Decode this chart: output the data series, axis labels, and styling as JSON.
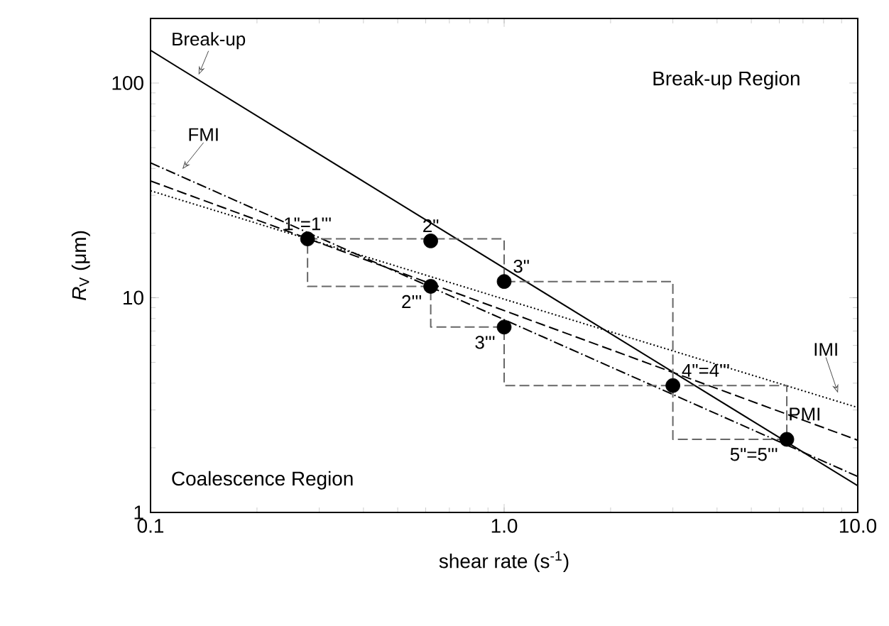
{
  "chart_data": {
    "type": "line",
    "xlabel": "shear rate (s$^{-1}$)",
    "ylabel": "*R*$_{V}$ (μm)",
    "log": "xy",
    "xlim": [
      0.1,
      10
    ],
    "ylim": [
      1,
      200
    ],
    "xticks": [
      0.1,
      {
        "value": 1,
        "label": "1.0"
      },
      {
        "value": 10,
        "label": "10.0"
      }
    ],
    "yticks": [
      1,
      10,
      100
    ],
    "series": [
      {
        "name": "Break-up",
        "color": "#000000",
        "line_style": "solid",
        "x": [
          0.1,
          10
        ],
        "values": [
          142,
          1.33
        ]
      },
      {
        "name": "FMI",
        "color": "#000000",
        "line_style": "dashdot",
        "x": [
          0.1,
          10
        ],
        "values": [
          42.5,
          1.47
        ]
      },
      {
        "name": "PMI",
        "color": "#000000",
        "line_style": "dashed",
        "x": [
          0.1,
          10
        ],
        "values": [
          35,
          2.17
        ]
      },
      {
        "name": "IMI",
        "color": "#000000",
        "line_style": "dotted",
        "x": [
          0.1,
          10
        ],
        "values": [
          31.5,
          3.08
        ]
      },
      {
        "color": "#666666",
        "line_style": "dashed",
        "x": [
          0.278,
          1.0,
          1.0,
          3.0,
          3.0,
          6.3,
          6.3
        ],
        "values": [
          18.8,
          18.8,
          11.9,
          11.9,
          3.9,
          3.9,
          2.19
        ]
      },
      {
        "color": "#666666",
        "line_style": "dashed",
        "x": [
          6.3,
          3.0,
          3.0,
          1.0,
          1.0,
          0.62,
          0.62,
          0.278,
          0.278
        ],
        "values": [
          2.19,
          2.19,
          3.9,
          3.9,
          7.3,
          7.3,
          11.3,
          11.3,
          18.8
        ]
      },
      {
        "type": "scatter",
        "color": "#000000",
        "marker": "circle",
        "x": [
          0.278,
          0.62,
          0.62,
          1.0,
          1.0,
          3.0,
          6.3
        ],
        "values": [
          18.8,
          18.4,
          11.3,
          11.9,
          7.3,
          3.9,
          2.19
        ]
      }
    ],
    "annotations": [
      {
        "text": "1\"=1'''",
        "x": 0.278,
        "y": 18.8
      },
      {
        "text": "2\"",
        "x": 0.62,
        "y": 18.4
      },
      {
        "text": "2'''",
        "x": 0.62,
        "y": 11.3
      },
      {
        "text": "3\"",
        "x": 1.0,
        "y": 11.9
      },
      {
        "text": "3'''",
        "x": 1.0,
        "y": 7.3
      },
      {
        "text": "4\"=4'''",
        "x": 3.0,
        "y": 3.9
      },
      {
        "text": "5\"=5'''",
        "x": 6.3,
        "y": 2.19
      },
      "Break-up Region",
      "Coalescence Region"
    ]
  }
}
